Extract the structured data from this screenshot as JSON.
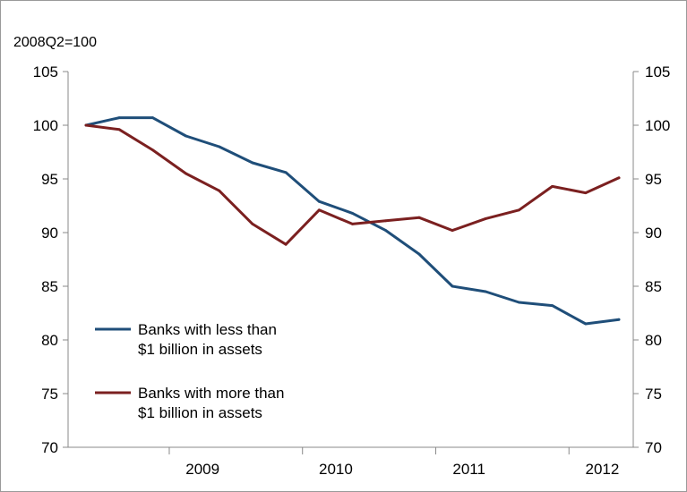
{
  "chart_data": {
    "type": "line",
    "unit_label": "2008Q2=100",
    "x": [
      "2008Q2",
      "2008Q3",
      "2008Q4",
      "2009Q1",
      "2009Q2",
      "2009Q3",
      "2009Q4",
      "2010Q1",
      "2010Q2",
      "2010Q3",
      "2010Q4",
      "2011Q1",
      "2011Q2",
      "2011Q3",
      "2011Q4",
      "2012Q1",
      "2012Q2"
    ],
    "x_tick_labels": [
      "2009",
      "2010",
      "2011",
      "2012"
    ],
    "x_tick_label_positions": [
      "2009Q1",
      "2010Q1",
      "2011Q1",
      "2012Q1"
    ],
    "ylim": [
      70,
      105
    ],
    "y_ticks": [
      70,
      75,
      80,
      85,
      90,
      95,
      100,
      105
    ],
    "secondary_axis": true,
    "grid": false,
    "legend_position": "lower-left",
    "series": [
      {
        "name": "Banks with less than $1 billion in assets",
        "legend_lines": [
          "Banks with less than",
          "$1 billion in assets"
        ],
        "color": "#1f4e79",
        "values": [
          100,
          100.7,
          100.7,
          99.0,
          98.0,
          96.5,
          95.6,
          92.9,
          91.8,
          90.2,
          88.0,
          85.0,
          84.5,
          83.5,
          83.2,
          81.5,
          81.9
        ]
      },
      {
        "name": "Banks with more than $1 billion in assets",
        "legend_lines": [
          "Banks with more than",
          "$1 billion in assets"
        ],
        "color": "#7b2020",
        "values": [
          100,
          99.6,
          97.7,
          95.5,
          93.9,
          90.8,
          88.9,
          92.1,
          90.8,
          91.1,
          91.4,
          90.2,
          91.3,
          92.1,
          94.3,
          93.7,
          95.1
        ]
      }
    ]
  }
}
